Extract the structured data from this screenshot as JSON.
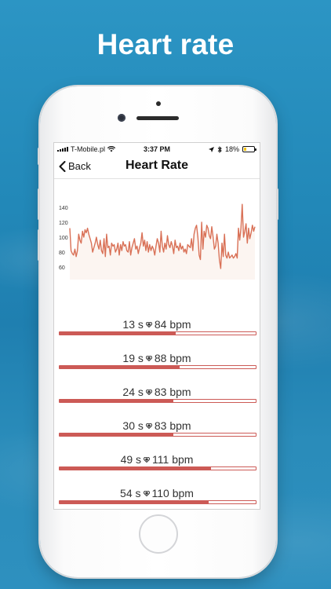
{
  "promo": {
    "title": "Heart rate"
  },
  "status_bar": {
    "carrier": "T-Mobile.pl",
    "time": "3:37 PM",
    "battery": "18%",
    "battery_level": 0.18
  },
  "nav": {
    "back_label": "Back",
    "title": "Heart Rate"
  },
  "chart_data": {
    "type": "line",
    "yticks": [
      "140",
      "120",
      "100",
      "80",
      "60"
    ],
    "ylim": [
      60,
      140
    ],
    "color": "#d97157",
    "values": [
      112,
      82,
      78,
      76,
      84,
      74,
      82,
      104,
      96,
      92,
      108,
      100,
      110,
      106,
      112,
      104,
      98,
      92,
      80,
      86,
      92,
      100,
      90,
      84,
      96,
      82,
      78,
      98,
      74,
      104,
      86,
      88,
      76,
      92,
      88,
      90,
      80,
      84,
      92,
      76,
      90,
      82,
      94,
      88,
      90,
      82,
      80,
      94,
      76,
      86,
      92,
      98,
      84,
      88,
      78,
      86,
      92,
      106,
      88,
      96,
      82,
      94,
      80,
      90,
      82,
      88,
      84,
      76,
      88,
      98,
      92,
      80,
      108,
      88,
      80,
      92,
      84,
      102,
      90,
      86,
      94,
      88,
      78,
      96,
      86,
      88,
      82,
      92,
      84,
      88,
      80,
      84,
      78,
      90,
      88,
      86,
      98,
      82,
      104,
      112,
      116,
      100,
      76,
      70,
      120,
      84,
      108,
      100,
      116,
      112,
      102,
      98,
      114,
      100,
      84,
      88,
      104,
      92,
      70,
      58,
      92,
      74,
      104,
      76,
      72,
      80,
      72,
      74,
      76,
      72,
      74,
      78,
      72,
      112,
      96,
      112,
      144,
      100,
      108,
      118,
      92,
      112,
      98,
      106,
      116,
      108,
      114
    ]
  },
  "heart_rate_list": [
    {
      "label": "13 s",
      "bpm": "84 bpm",
      "level": 0.59
    },
    {
      "label": "19 s",
      "bpm": "88 bpm",
      "level": 0.61
    },
    {
      "label": "24 s",
      "bpm": "83 bpm",
      "level": 0.58
    },
    {
      "label": "30 s",
      "bpm": "83 bpm",
      "level": 0.58
    },
    {
      "label": "49 s",
      "bpm": "111 bpm",
      "level": 0.77
    },
    {
      "label": "54 s",
      "bpm": "110 bpm",
      "level": 0.76
    }
  ],
  "colors": {
    "accent": "#cc5a56",
    "background": "#2288b8",
    "line": "#d97157"
  }
}
